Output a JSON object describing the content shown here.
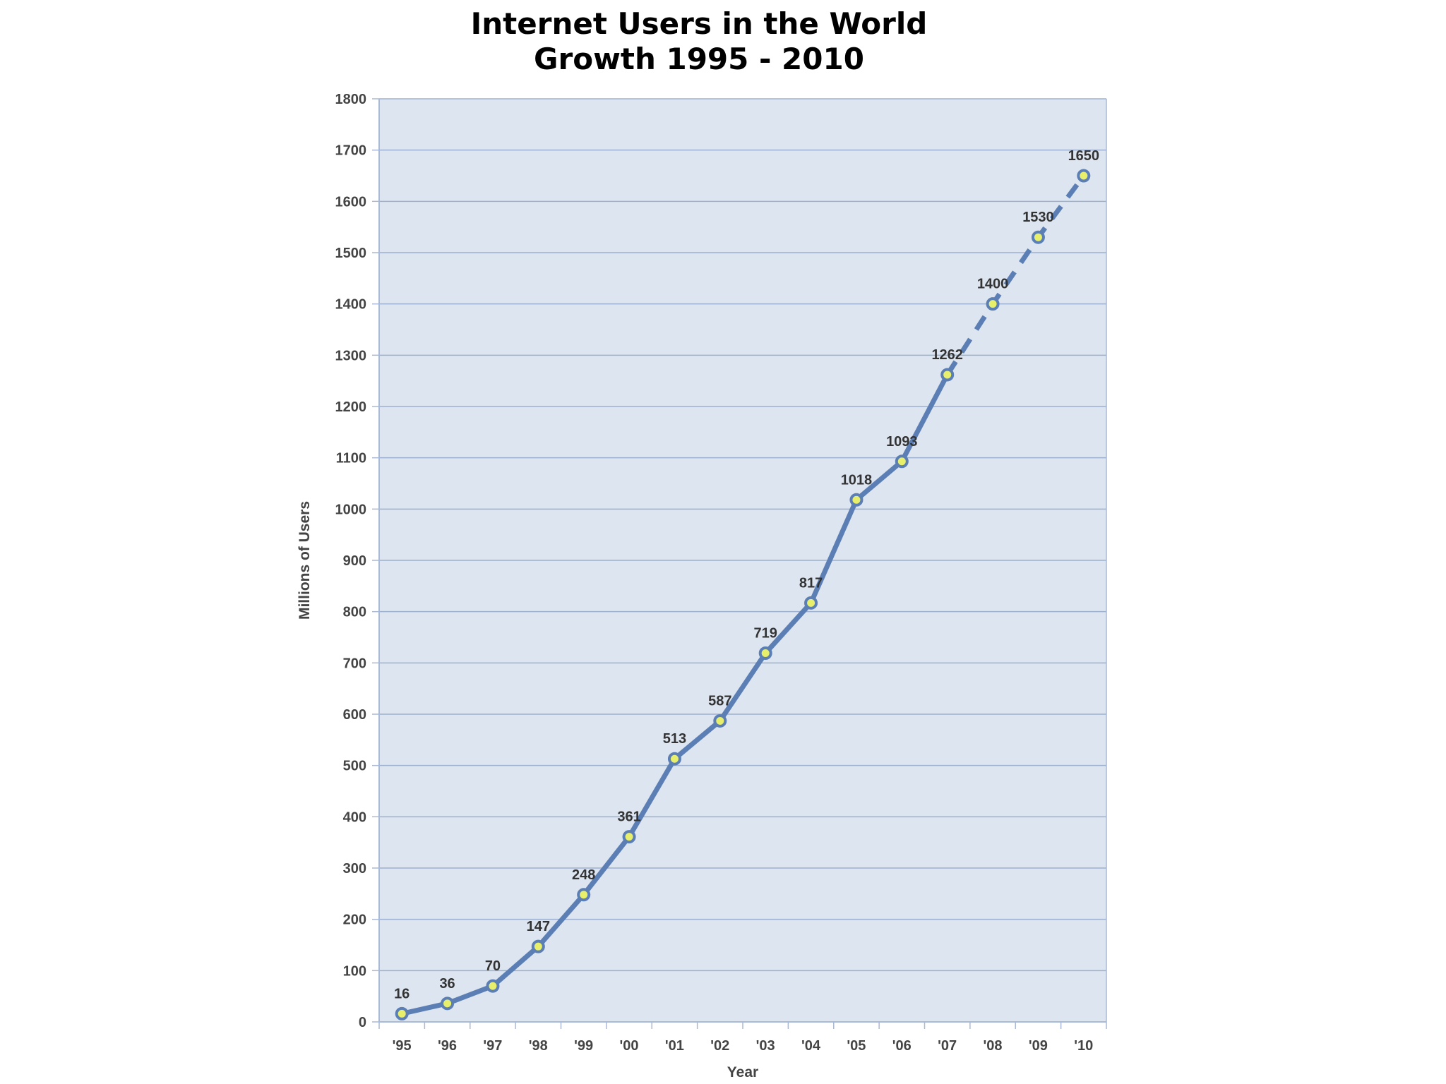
{
  "chart_data": {
    "type": "line",
    "title": "Internet Users in the World",
    "subtitle": "Growth 1995 - 2010",
    "xlabel": "Year",
    "ylabel": "Millions of Users",
    "categories": [
      "'95",
      "'96",
      "'97",
      "'98",
      "'99",
      "'00",
      "'01",
      "'02",
      "'03",
      "'04",
      "'05",
      "'06",
      "'07",
      "'08",
      "'09",
      "'10"
    ],
    "values": [
      16,
      36,
      70,
      147,
      248,
      361,
      513,
      587,
      719,
      817,
      1018,
      1093,
      1262,
      1400,
      1530,
      1650
    ],
    "data_labels": [
      "16",
      "36",
      "70",
      "147",
      "248",
      "361",
      "513",
      "587",
      "719",
      "817",
      "1018",
      "1093",
      "1262",
      "1400",
      "1530",
      "1650"
    ],
    "dashed_from_index": 12,
    "ylim": [
      0,
      1800
    ],
    "yticks": [
      0,
      100,
      200,
      300,
      400,
      500,
      600,
      700,
      800,
      900,
      1000,
      1100,
      1200,
      1300,
      1400,
      1500,
      1600,
      1700,
      1800
    ],
    "grid": true,
    "legend": "none",
    "colors": {
      "line": "#5b7fb5",
      "marker_fill": "#e8ef6a",
      "plot_background": "#dde5f0",
      "gridline": "#9db0d0",
      "axis": "#a9b9d6"
    }
  }
}
